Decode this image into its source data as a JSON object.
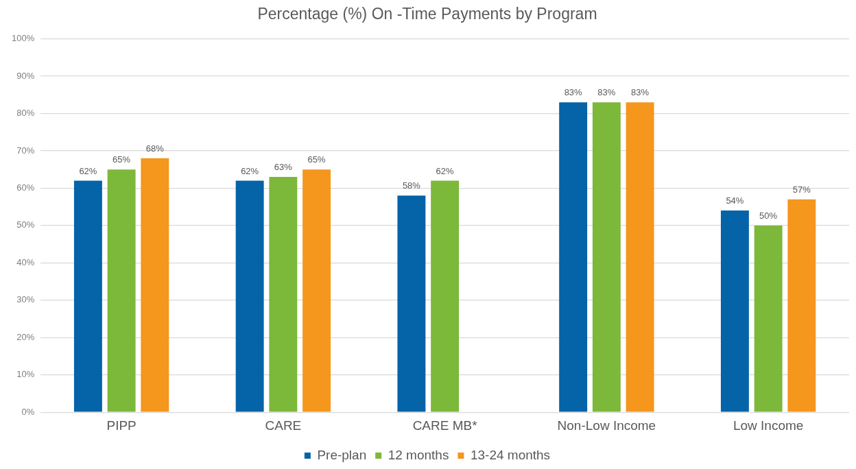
{
  "chart_data": {
    "type": "bar",
    "title": "Percentage (%) On -Time Payments by Program",
    "categories": [
      "PIPP",
      "CARE",
      "CARE MB*",
      "Non-Low Income",
      "Low Income"
    ],
    "series": [
      {
        "name": "Pre-plan",
        "color": "#0563a8",
        "values": [
          62,
          62,
          58,
          83,
          54
        ],
        "value_labels": [
          "62%",
          "62%",
          "58%",
          "83%",
          "54%"
        ]
      },
      {
        "name": "12 months",
        "color": "#7cb83a",
        "values": [
          65,
          63,
          62,
          83,
          50
        ],
        "value_labels": [
          "65%",
          "63%",
          "62%",
          "83%",
          "50%"
        ]
      },
      {
        "name": "13-24 months",
        "color": "#f5961d",
        "values": [
          68,
          65,
          null,
          83,
          57
        ],
        "value_labels": [
          "68%",
          "65%",
          null,
          "83%",
          "57%"
        ]
      }
    ],
    "ylim": [
      0,
      100
    ],
    "yticks": [
      {
        "value": 0,
        "label": "0%"
      },
      {
        "value": 10,
        "label": "10%"
      },
      {
        "value": 20,
        "label": "20%"
      },
      {
        "value": 30,
        "label": "30%"
      },
      {
        "value": 40,
        "label": "40%"
      },
      {
        "value": 50,
        "label": "50%"
      },
      {
        "value": 60,
        "label": "60%"
      },
      {
        "value": 70,
        "label": "70%"
      },
      {
        "value": 80,
        "label": "80%"
      },
      {
        "value": 90,
        "label": "90%"
      },
      {
        "value": 100,
        "label": "100%"
      }
    ],
    "grid": "y",
    "legend": "bottom"
  }
}
